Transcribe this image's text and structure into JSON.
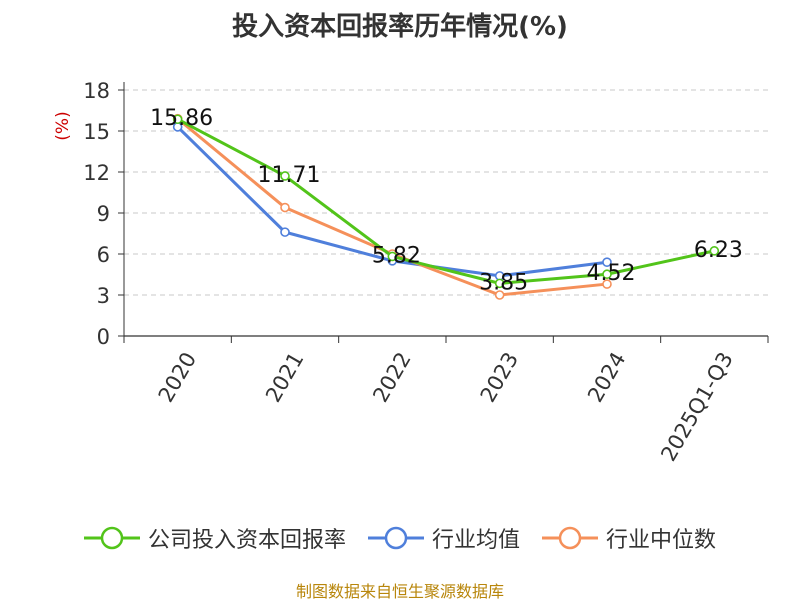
{
  "chart_data": {
    "type": "line",
    "title": "投入资本回报率历年情况(%)",
    "ylabel": "(%)",
    "xlabel": "",
    "categories": [
      "2020",
      "2021",
      "2022",
      "2023",
      "2024",
      "2025Q1-Q3"
    ],
    "ylim": [
      0,
      18
    ],
    "yticks": [
      0,
      3,
      6,
      9,
      12,
      15,
      18
    ],
    "grid": true,
    "legend_position": "bottom",
    "series": [
      {
        "name": "公司投入资本回报率",
        "color": "#52c41a",
        "values": [
          15.86,
          11.71,
          5.82,
          3.85,
          4.52,
          6.23
        ],
        "show_labels": true
      },
      {
        "name": "行业均值",
        "color": "#4f7fdb",
        "values": [
          15.3,
          7.6,
          5.5,
          4.4,
          5.4,
          null
        ],
        "show_labels": false
      },
      {
        "name": "行业中位数",
        "color": "#f5905a",
        "values": [
          15.9,
          9.4,
          6.0,
          3.0,
          3.8,
          null
        ],
        "show_labels": false
      }
    ],
    "data_labels": [
      "15.86",
      "11.71",
      "5.82",
      "3.85",
      "4.52",
      "6.23"
    ]
  },
  "footer": {
    "source": "制图数据来自恒生聚源数据库"
  }
}
